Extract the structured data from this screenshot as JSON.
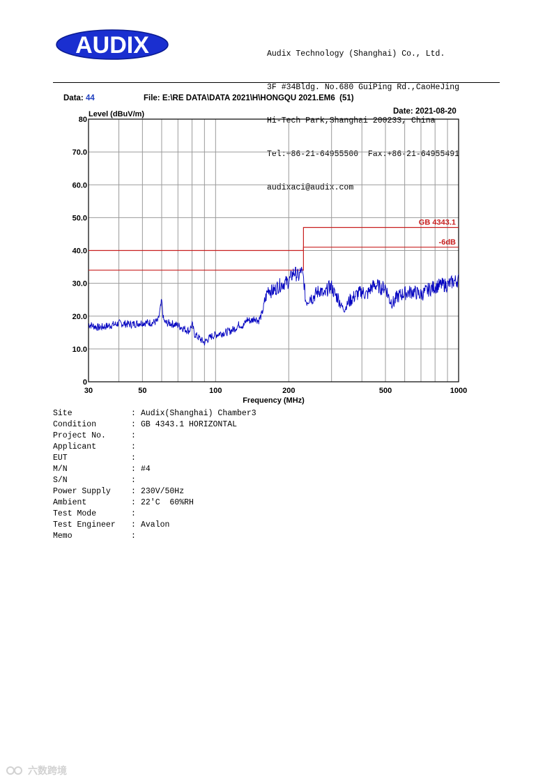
{
  "header": {
    "logo_text": "AUDIX",
    "company_lines": [
      "Audix Technology (Shanghai) Co., Ltd.",
      "3F #34Bldg. No.680 GuiPing Rd.,CaoHeJing",
      "Hi-Tech Park,Shanghai 200233, China",
      "Tel:+86-21-64955500  Fax:+86-21-64955491",
      "audixaci@audix.com"
    ]
  },
  "meta": {
    "data_label": "Data:",
    "data_value": "44",
    "file_label": "File: E:\\RE DATA\\DATA 2021\\H\\HONGQU 2021.EM6  (51)",
    "date_label": "Date: 2021-08-20"
  },
  "colors": {
    "trace": "#0000c0",
    "limit": "#c81e1e",
    "grid": "#9a9a9a",
    "meta_value": "#1f3fbf"
  },
  "chart_data": {
    "type": "line",
    "title": "",
    "xlabel": "Frequency (MHz)",
    "ylabel": "Level (dBuV/m)",
    "x_scale": "log",
    "xlim": [
      30,
      1000
    ],
    "ylim": [
      0,
      80
    ],
    "grid": true,
    "x_tick_labels": [
      {
        "x": 30,
        "label": "30"
      },
      {
        "x": 50,
        "label": "50"
      },
      {
        "x": 100,
        "label": "100"
      },
      {
        "x": 200,
        "label": "200"
      },
      {
        "x": 500,
        "label": "500"
      },
      {
        "x": 1000,
        "label": "1000"
      }
    ],
    "x_gridlines": [
      30,
      40,
      50,
      60,
      70,
      80,
      90,
      100,
      200,
      300,
      400,
      500,
      600,
      700,
      800,
      900,
      1000
    ],
    "y_ticks": [
      0,
      10,
      20,
      30,
      40,
      50,
      60,
      70,
      80
    ],
    "y_tick_labels": [
      "0",
      "10.0",
      "20.0",
      "30.0",
      "40.0",
      "50.0",
      "60.0",
      "70.0",
      "80"
    ],
    "series": [
      {
        "name": "GB 4343.1",
        "role": "limit",
        "x": [
          30,
          230,
          230,
          1000
        ],
        "y": [
          40,
          40,
          47,
          47
        ]
      },
      {
        "name": "-6dB",
        "role": "limit",
        "x": [
          30,
          230,
          230,
          1000
        ],
        "y": [
          34,
          34,
          41,
          41
        ]
      },
      {
        "name": "",
        "role": "measurement",
        "x": [
          30,
          33,
          36,
          40,
          45,
          50,
          55,
          58,
          60,
          61,
          62,
          65,
          70,
          75,
          78,
          80,
          82,
          85,
          88,
          90,
          93,
          96,
          100,
          105,
          110,
          115,
          120,
          125,
          130,
          135,
          140,
          145,
          150,
          155,
          160,
          165,
          170,
          175,
          180,
          190,
          200,
          210,
          220,
          225,
          230,
          235,
          240,
          245,
          250,
          260,
          270,
          280,
          290,
          300,
          310,
          320,
          330,
          340,
          350,
          360,
          380,
          400,
          420,
          440,
          460,
          480,
          500,
          520,
          540,
          560,
          600,
          650,
          700,
          750,
          800,
          850,
          900,
          950,
          1000
        ],
        "y": [
          17.5,
          16.5,
          17.0,
          17.8,
          17.5,
          18.0,
          18.0,
          18.5,
          24.5,
          19.0,
          18.0,
          17.8,
          17.2,
          16.0,
          15.5,
          17.5,
          14.5,
          13.5,
          12.5,
          12.0,
          13.0,
          13.8,
          14.3,
          14.8,
          15.0,
          15.5,
          16.2,
          17.5,
          17.0,
          19.0,
          18.5,
          19.5,
          18.5,
          20.5,
          25.0,
          28.5,
          27.5,
          28.0,
          29.0,
          30.0,
          30.5,
          33.5,
          32.0,
          34.0,
          31.5,
          24.5,
          25.0,
          26.0,
          25.5,
          27.0,
          28.0,
          26.0,
          28.5,
          29.0,
          26.5,
          25.5,
          23.0,
          22.0,
          24.0,
          25.0,
          26.5,
          27.5,
          26.5,
          29.0,
          29.5,
          28.5,
          29.0,
          25.0,
          24.0,
          26.0,
          27.0,
          27.5,
          26.5,
          28.0,
          29.0,
          29.5,
          29.5,
          30.5,
          31.0
        ]
      }
    ]
  },
  "info": [
    {
      "key": "Site",
      "value": "Audix(Shanghai) Chamber3"
    },
    {
      "key": "Condition",
      "value": "GB 4343.1 HORIZONTAL"
    },
    {
      "key": "Project No.",
      "value": ""
    },
    {
      "key": "Applicant",
      "value": ""
    },
    {
      "key": "EUT",
      "value": ""
    },
    {
      "key": "M/N",
      "value": "#4"
    },
    {
      "key": "S/N",
      "value": ""
    },
    {
      "key": "Power Supply",
      "value": "230V/50Hz"
    },
    {
      "key": "Ambient",
      "value": "22'C  60%RH"
    },
    {
      "key": "Test Mode",
      "value": ""
    },
    {
      "key": "Test Engineer",
      "value": "Avalon"
    },
    {
      "key": "Memo",
      "value": ""
    }
  ],
  "watermark": {
    "text": "六数跨境"
  }
}
